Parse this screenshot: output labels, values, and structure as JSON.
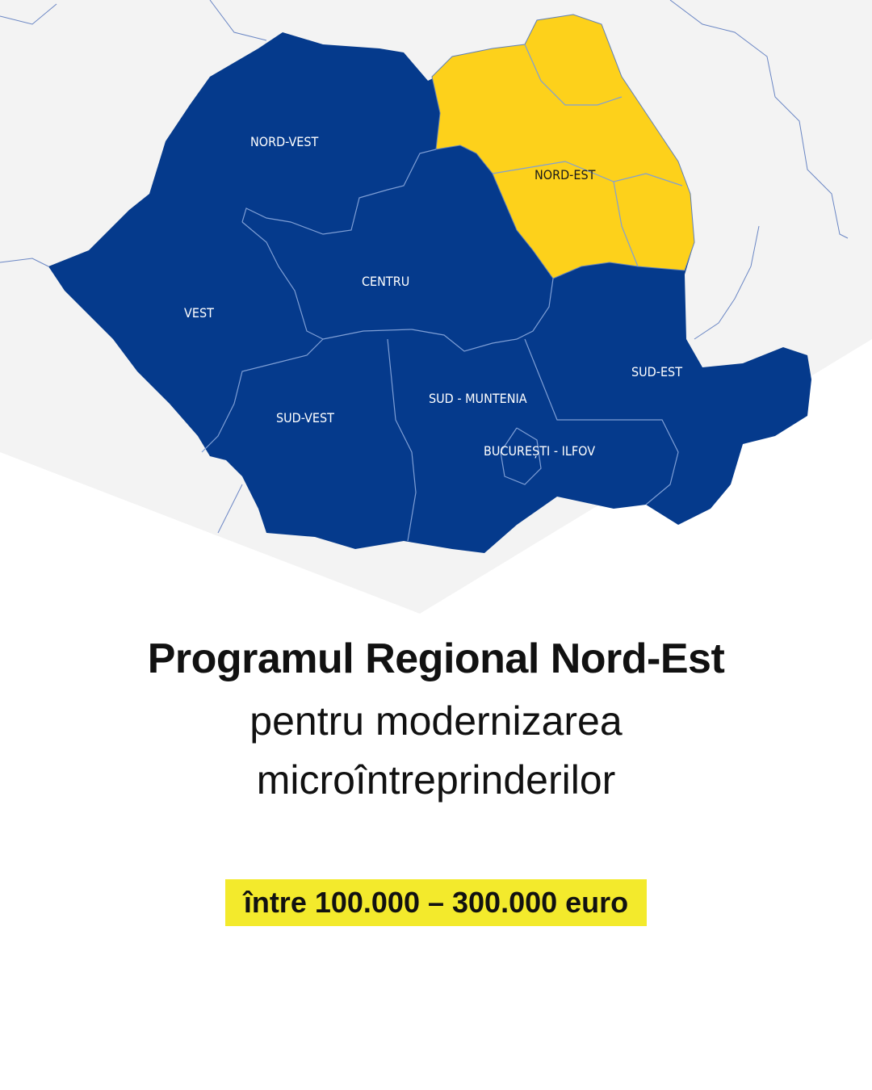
{
  "map": {
    "regions": [
      {
        "id": "nord-vest",
        "label": "NORD-VEST",
        "highlighted": false
      },
      {
        "id": "nord-est",
        "label": "NORD-EST",
        "highlighted": true
      },
      {
        "id": "centru",
        "label": "CENTRU",
        "highlighted": false
      },
      {
        "id": "vest",
        "label": "VEST",
        "highlighted": false
      },
      {
        "id": "sud-est",
        "label": "SUD-EST",
        "highlighted": false
      },
      {
        "id": "sud-muntenia",
        "label": "SUD - MUNTENIA",
        "highlighted": false
      },
      {
        "id": "sud-vest",
        "label": "SUD-VEST",
        "highlighted": false
      },
      {
        "id": "bucuresti-ilfov",
        "label": "BUCUREȘTI - ILFOV",
        "highlighted": false
      }
    ],
    "colors": {
      "region": "#053a8c",
      "highlight": "#fdd11b",
      "background": "#f3f3f3",
      "border": "#7f9fd6"
    }
  },
  "heading": {
    "line1": "Programul Regional Nord-Est",
    "line2": "pentru modernizarea",
    "line3": "microîntreprinderilor"
  },
  "badge": {
    "text": "între 100.000 – 300.000 euro",
    "color": "#f3ea2c"
  }
}
